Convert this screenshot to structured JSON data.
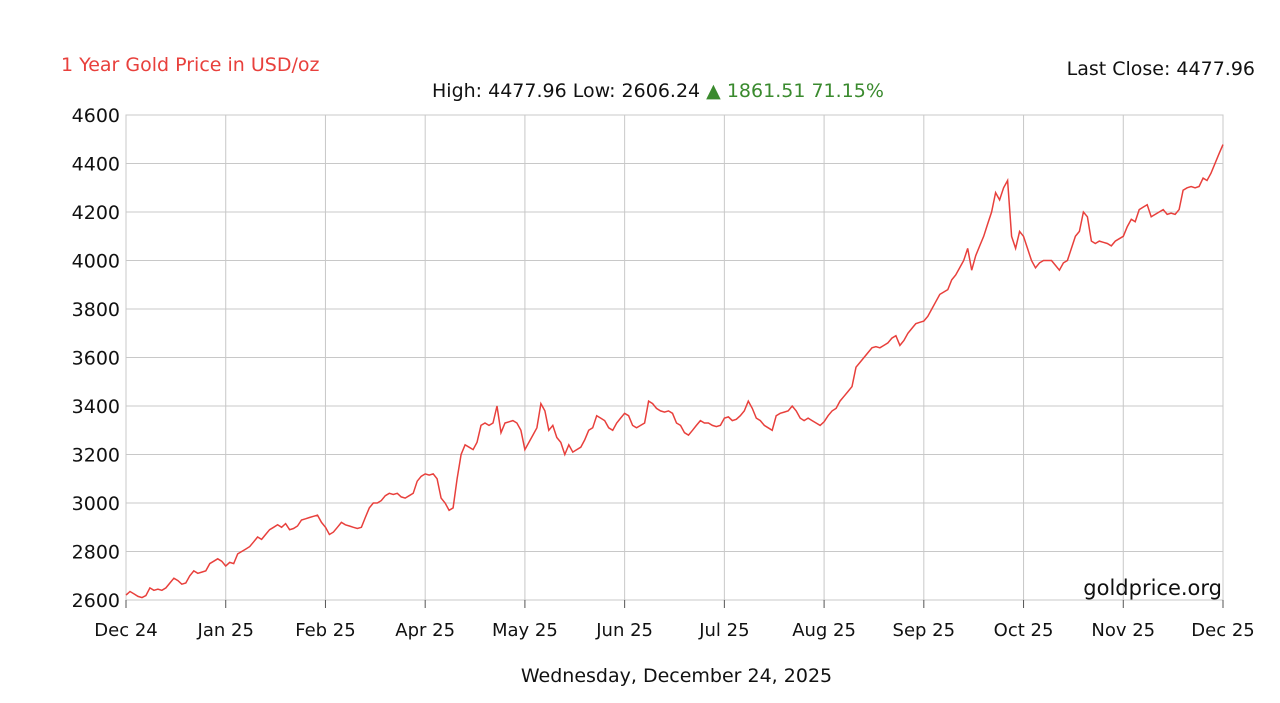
{
  "header": {
    "title": "1 Year Gold Price in USD/oz",
    "last_close_label": "Last Close: 4477.96",
    "high_text": "High: 4477.96",
    "low_text": "Low: 2606.24",
    "change_arrow": "▲",
    "change_text": "1861.51 71.15%"
  },
  "colors": {
    "title": "#e8403c",
    "line": "#e8403c",
    "change": "#3a8a2e",
    "grid": "#c8c8c8"
  },
  "watermark": "goldprice.org",
  "footer": {
    "date": "Wednesday, December 24, 2025"
  },
  "chart_data": {
    "type": "line",
    "title": "1 Year Gold Price in USD/oz",
    "xlabel": "",
    "ylabel": "",
    "ylim": [
      2600,
      4600
    ],
    "yticks": [
      2600,
      2800,
      3000,
      3200,
      3400,
      3600,
      3800,
      4000,
      4200,
      4400,
      4600
    ],
    "xticks": [
      "Dec 24",
      "Jan 25",
      "Feb 25",
      "Apr 25",
      "May 25",
      "Jun 25",
      "Jul 25",
      "Aug 25",
      "Sep 25",
      "Oct 25",
      "Nov 25",
      "Dec 25"
    ],
    "grid": true,
    "series": [
      {
        "values": [
          2620,
          2635,
          2625,
          2615,
          2610,
          2618,
          2650,
          2640,
          2645,
          2640,
          2650,
          2670,
          2690,
          2680,
          2665,
          2670,
          2700,
          2720,
          2710,
          2715,
          2720,
          2750,
          2760,
          2770,
          2760,
          2740,
          2755,
          2750,
          2790,
          2800,
          2810,
          2820,
          2840,
          2860,
          2850,
          2870,
          2890,
          2900,
          2910,
          2900,
          2915,
          2890,
          2895,
          2905,
          2930,
          2935,
          2940,
          2945,
          2950,
          2920,
          2900,
          2870,
          2880,
          2900,
          2920,
          2910,
          2905,
          2900,
          2895,
          2900,
          2940,
          2980,
          3000,
          3000,
          3010,
          3030,
          3040,
          3035,
          3040,
          3025,
          3020,
          3030,
          3040,
          3090,
          3110,
          3120,
          3115,
          3120,
          3100,
          3020,
          3000,
          2970,
          2980,
          3100,
          3200,
          3240,
          3230,
          3220,
          3250,
          3320,
          3330,
          3320,
          3330,
          3400,
          3290,
          3330,
          3335,
          3340,
          3330,
          3300,
          3220,
          3250,
          3280,
          3310,
          3410,
          3380,
          3300,
          3320,
          3270,
          3250,
          3200,
          3240,
          3210,
          3220,
          3230,
          3260,
          3300,
          3310,
          3360,
          3350,
          3340,
          3310,
          3300,
          3330,
          3350,
          3370,
          3360,
          3320,
          3310,
          3320,
          3330,
          3420,
          3410,
          3390,
          3380,
          3375,
          3380,
          3370,
          3330,
          3320,
          3290,
          3280,
          3300,
          3320,
          3340,
          3330,
          3330,
          3320,
          3315,
          3320,
          3350,
          3355,
          3340,
          3345,
          3360,
          3380,
          3420,
          3390,
          3350,
          3340,
          3320,
          3310,
          3300,
          3360,
          3370,
          3375,
          3380,
          3400,
          3380,
          3350,
          3340,
          3350,
          3340,
          3330,
          3320,
          3335,
          3360,
          3380,
          3390,
          3420,
          3440,
          3460,
          3480,
          3560,
          3580,
          3600,
          3620,
          3640,
          3645,
          3640,
          3650,
          3660,
          3680,
          3690,
          3650,
          3670,
          3700,
          3720,
          3740,
          3745,
          3750,
          3770,
          3800,
          3830,
          3860,
          3870,
          3880,
          3920,
          3940,
          3970,
          4000,
          4050,
          3960,
          4020,
          4060,
          4100,
          4150,
          4200,
          4280,
          4250,
          4300,
          4330,
          4100,
          4050,
          4120,
          4100,
          4050,
          4000,
          3970,
          3990,
          4000,
          4000,
          4000,
          3980,
          3960,
          3990,
          4000,
          4050,
          4100,
          4120,
          4200,
          4180,
          4080,
          4070,
          4080,
          4075,
          4070,
          4060,
          4080,
          4090,
          4100,
          4140,
          4170,
          4160,
          4210,
          4220,
          4230,
          4180,
          4190,
          4200,
          4210,
          4190,
          4195,
          4190,
          4210,
          4290,
          4300,
          4305,
          4300,
          4305,
          4340,
          4330,
          4360,
          4400,
          4440,
          4477.96
        ]
      }
    ]
  }
}
